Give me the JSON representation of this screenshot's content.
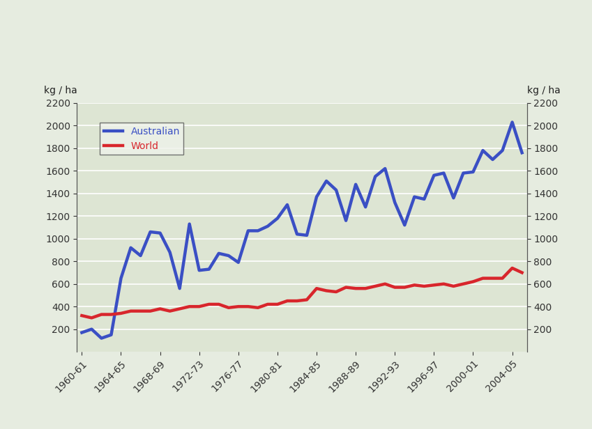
{
  "chart_data": {
    "type": "line",
    "y_label": "kg / ha",
    "y2_label": "kg / ha",
    "categories": [
      "1960-61",
      null,
      null,
      null,
      "1964-65",
      null,
      null,
      null,
      "1968-69",
      null,
      null,
      null,
      "1972-73",
      null,
      null,
      null,
      "1976-77",
      null,
      null,
      null,
      "1980-81",
      null,
      null,
      null,
      "1984-85",
      null,
      null,
      null,
      "1988-89",
      null,
      null,
      null,
      "1992-93",
      null,
      null,
      null,
      "1996-97",
      null,
      null,
      null,
      "2000-01",
      null,
      null,
      null,
      "2004-05",
      null
    ],
    "series": [
      {
        "name": "Australian",
        "color": "#3a4fc4",
        "values": [
          170,
          200,
          120,
          150,
          650,
          920,
          850,
          1060,
          1050,
          880,
          560,
          1130,
          720,
          730,
          870,
          850,
          790,
          1070,
          1070,
          1110,
          1180,
          1300,
          1040,
          1030,
          1370,
          1510,
          1430,
          1160,
          1480,
          1280,
          1550,
          1620,
          1320,
          1120,
          1370,
          1350,
          1560,
          1580,
          1360,
          1580,
          1590,
          1780,
          1700,
          1780,
          2030,
          1760
        ]
      },
      {
        "name": "World",
        "color": "#d8262c",
        "values": [
          320,
          300,
          330,
          330,
          340,
          360,
          360,
          360,
          380,
          360,
          380,
          400,
          400,
          420,
          420,
          390,
          400,
          400,
          390,
          420,
          420,
          450,
          450,
          460,
          560,
          540,
          530,
          570,
          560,
          560,
          580,
          600,
          570,
          570,
          590,
          580,
          590,
          600,
          580,
          600,
          620,
          650,
          650,
          650,
          740,
          700
        ]
      }
    ],
    "ylim": [
      0,
      2200
    ],
    "yticks": [
      200,
      400,
      600,
      800,
      1000,
      1200,
      1400,
      1600,
      1800,
      2000,
      2200
    ],
    "y2lim": [
      0,
      2200
    ],
    "y2ticks": [
      200,
      400,
      600,
      800,
      1000,
      1200,
      1400,
      1600,
      1800,
      2000,
      2200
    ],
    "grid": true,
    "legend": "upper left"
  }
}
